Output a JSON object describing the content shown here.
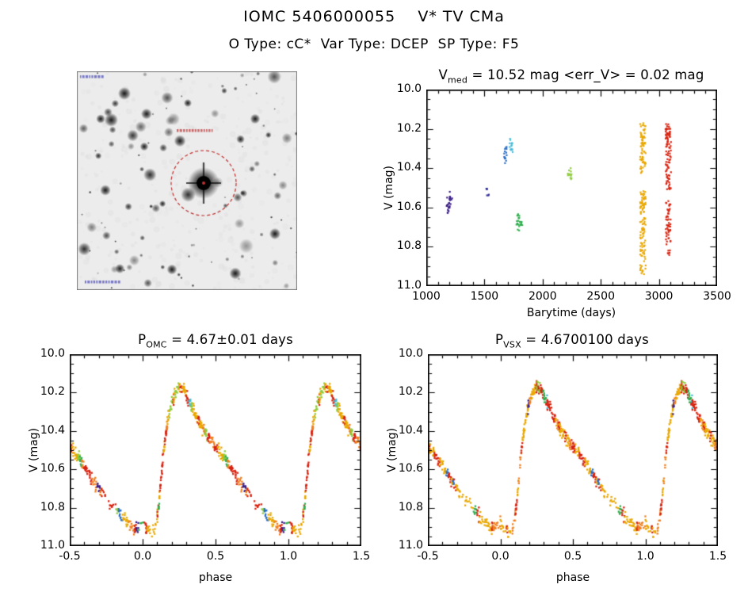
{
  "header": {
    "title": "IOMC 5406000055    V* TV CMa",
    "subtitle": "O Type: cC*  Var Type: DCEP  SP Type: F5"
  },
  "finder_chart": {
    "style": "inverted-grayscale star field with target circled",
    "target_circle_color": "#c03030"
  },
  "chart_data": [
    {
      "id": "timeseries",
      "type": "scatter",
      "title": "Vmed = 10.52 mag <err_V> = 0.02 mag",
      "title_parts": {
        "p1": "V",
        "sub": "med",
        "p2": " = 10.52 mag <err_V> = 0.02 mag"
      },
      "xlabel": "Barytime (days)",
      "ylabel": "V (mag)",
      "xlim": [
        1000,
        3500
      ],
      "ylim": [
        10.0,
        11.0
      ],
      "y_inverted": true,
      "xticks": [
        1000,
        1500,
        2000,
        2500,
        3000,
        3500
      ],
      "xtick_labels": [
        "1000",
        "1500",
        "2000",
        "2500",
        "3000",
        "3500"
      ],
      "xminor": 100,
      "yticks": [
        10.0,
        10.2,
        10.4,
        10.6,
        10.8,
        11.0
      ],
      "ytick_labels": [
        "10.0",
        "10.2",
        "10.4",
        "10.6",
        "10.8",
        "11.0"
      ],
      "yminor": 0.05,
      "segments": [
        {
          "x": 1192,
          "y0": 10.52,
          "y1": 10.63,
          "color": "#3a1d86",
          "n": 16,
          "w": 5
        },
        {
          "x": 1208,
          "y0": 10.54,
          "y1": 10.6,
          "color": "#3a1d86",
          "n": 8,
          "w": 4
        },
        {
          "x": 1528,
          "y0": 10.5,
          "y1": 10.54,
          "color": "#32309c",
          "n": 6,
          "w": 4
        },
        {
          "x": 1682,
          "y0": 10.29,
          "y1": 10.38,
          "color": "#2b6fc4",
          "n": 14,
          "w": 4
        },
        {
          "x": 1730,
          "y0": 10.25,
          "y1": 10.34,
          "color": "#46bcd8",
          "n": 14,
          "w": 4
        },
        {
          "x": 1786,
          "y0": 10.63,
          "y1": 10.74,
          "color": "#2fae4e",
          "n": 14,
          "w": 4
        },
        {
          "x": 1812,
          "y0": 10.66,
          "y1": 10.72,
          "color": "#2fae4e",
          "n": 9,
          "w": 4
        },
        {
          "x": 2232,
          "y0": 10.4,
          "y1": 10.46,
          "color": "#8ecb3c",
          "n": 12,
          "w": 5
        },
        {
          "x": 2862,
          "y0": 10.17,
          "y1": 10.43,
          "color": "#e9a800",
          "n": 70,
          "w": 7
        },
        {
          "x": 2862,
          "y0": 10.52,
          "y1": 10.94,
          "color": "#e9a800",
          "n": 110,
          "w": 7
        },
        {
          "x": 3080,
          "y0": 10.17,
          "y1": 10.52,
          "color": "#d62310",
          "n": 90,
          "w": 7
        },
        {
          "x": 3080,
          "y0": 10.56,
          "y1": 10.79,
          "color": "#d62310",
          "n": 50,
          "w": 6
        },
        {
          "x": 3086,
          "y0": 10.81,
          "y1": 10.84,
          "color": "#d62310",
          "n": 6,
          "w": 3
        }
      ]
    },
    {
      "id": "phase_omc",
      "type": "scatter",
      "title": "POMC = 4.67±0.01 days",
      "title_parts": {
        "p1": "P",
        "sub": "OMC",
        "p2": " = 4.67±0.01 days"
      },
      "xlabel": "phase",
      "ylabel": "V (mag)",
      "xlim": [
        -0.5,
        1.5
      ],
      "ylim": [
        10.0,
        11.0
      ],
      "y_inverted": true,
      "xticks": [
        -0.5,
        0.0,
        0.5,
        1.0,
        1.5
      ],
      "xtick_labels": [
        "-0.5",
        "0.0",
        "0.5",
        "1.0",
        "1.5"
      ],
      "xminor": 0.1,
      "yticks": [
        10.0,
        10.2,
        10.4,
        10.6,
        10.8,
        11.0
      ],
      "ytick_labels": [
        "10.0",
        "10.2",
        "10.4",
        "10.6",
        "10.8",
        "11.0"
      ],
      "yminor": 0.05,
      "curve": [
        [
          0.0,
          10.88
        ],
        [
          0.03,
          10.91
        ],
        [
          0.06,
          10.93
        ],
        [
          0.09,
          10.9
        ],
        [
          0.11,
          10.8
        ],
        [
          0.13,
          10.62
        ],
        [
          0.15,
          10.47
        ],
        [
          0.17,
          10.36
        ],
        [
          0.19,
          10.28
        ],
        [
          0.22,
          10.21
        ],
        [
          0.25,
          10.17
        ],
        [
          0.28,
          10.18
        ],
        [
          0.31,
          10.23
        ],
        [
          0.34,
          10.28
        ],
        [
          0.38,
          10.34
        ],
        [
          0.42,
          10.4
        ],
        [
          0.46,
          10.44
        ],
        [
          0.5,
          10.48
        ],
        [
          0.54,
          10.52
        ],
        [
          0.58,
          10.56
        ],
        [
          0.62,
          10.61
        ],
        [
          0.66,
          10.66
        ],
        [
          0.7,
          10.7
        ],
        [
          0.74,
          10.74
        ],
        [
          0.78,
          10.78
        ],
        [
          0.82,
          10.81
        ],
        [
          0.86,
          10.85
        ],
        [
          0.9,
          10.88
        ],
        [
          0.94,
          10.91
        ],
        [
          0.97,
          10.9
        ],
        [
          1.0,
          10.88
        ]
      ],
      "scatter_sigma_mag": 0.015,
      "n_scale": 470,
      "density_windows": [
        [
          0.0,
          0.06,
          0.7
        ],
        [
          0.06,
          0.1,
          0.5
        ],
        [
          0.1,
          0.26,
          1.6
        ],
        [
          0.26,
          0.4,
          1.5
        ],
        [
          0.4,
          0.58,
          1.2
        ],
        [
          0.58,
          0.72,
          1.0
        ],
        [
          0.72,
          0.82,
          0.3
        ],
        [
          0.82,
          0.97,
          0.85
        ],
        [
          0.97,
          1.0,
          0.4
        ]
      ],
      "palette": [
        [
          "#e9a800",
          0.36
        ],
        [
          "#f07f1f",
          0.13
        ],
        [
          "#d62310",
          0.3
        ],
        [
          "#2fae4e",
          0.08
        ],
        [
          "#46bcd8",
          0.05
        ],
        [
          "#8ecb3c",
          0.04
        ],
        [
          "#3a1d86",
          0.02
        ],
        [
          "#2b6fc4",
          0.02
        ]
      ]
    },
    {
      "id": "phase_vsx",
      "type": "scatter",
      "title": "PVSX = 4.6700100 days",
      "title_parts": {
        "p1": "P",
        "sub": "VSX",
        "p2": " = 4.6700100 days"
      },
      "xlabel": "phase",
      "ylabel": "V (mag)",
      "xlim": [
        -0.5,
        1.5
      ],
      "ylim": [
        10.0,
        11.0
      ],
      "y_inverted": true,
      "xticks": [
        -0.5,
        0.0,
        0.5,
        1.0,
        1.5
      ],
      "xtick_labels": [
        "-0.5",
        "0.0",
        "0.5",
        "1.0",
        "1.5"
      ],
      "xminor": 0.1,
      "yticks": [
        10.0,
        10.2,
        10.4,
        10.6,
        10.8,
        11.0
      ],
      "ytick_labels": [
        "10.0",
        "10.2",
        "10.4",
        "10.6",
        "10.8",
        "11.0"
      ],
      "yminor": 0.05,
      "curve": [
        [
          0.0,
          10.88
        ],
        [
          0.03,
          10.91
        ],
        [
          0.06,
          10.93
        ],
        [
          0.09,
          10.9
        ],
        [
          0.11,
          10.8
        ],
        [
          0.13,
          10.62
        ],
        [
          0.15,
          10.47
        ],
        [
          0.17,
          10.36
        ],
        [
          0.19,
          10.28
        ],
        [
          0.22,
          10.21
        ],
        [
          0.25,
          10.17
        ],
        [
          0.28,
          10.18
        ],
        [
          0.31,
          10.23
        ],
        [
          0.34,
          10.28
        ],
        [
          0.38,
          10.34
        ],
        [
          0.42,
          10.4
        ],
        [
          0.46,
          10.44
        ],
        [
          0.5,
          10.48
        ],
        [
          0.54,
          10.52
        ],
        [
          0.58,
          10.56
        ],
        [
          0.62,
          10.61
        ],
        [
          0.66,
          10.66
        ],
        [
          0.7,
          10.7
        ],
        [
          0.74,
          10.74
        ],
        [
          0.78,
          10.78
        ],
        [
          0.82,
          10.81
        ],
        [
          0.86,
          10.85
        ],
        [
          0.9,
          10.88
        ],
        [
          0.94,
          10.91
        ],
        [
          0.97,
          10.9
        ],
        [
          1.0,
          10.88
        ]
      ],
      "scatter_sigma_mag": 0.015,
      "n_scale": 470,
      "density_windows": [
        [
          0.0,
          0.06,
          0.7
        ],
        [
          0.06,
          0.1,
          0.5
        ],
        [
          0.1,
          0.26,
          1.6
        ],
        [
          0.26,
          0.4,
          1.5
        ],
        [
          0.4,
          0.58,
          1.2
        ],
        [
          0.58,
          0.72,
          1.0
        ],
        [
          0.72,
          0.82,
          0.3
        ],
        [
          0.82,
          0.97,
          0.85
        ],
        [
          0.97,
          1.0,
          0.4
        ]
      ],
      "palette": [
        [
          "#e9a800",
          0.36
        ],
        [
          "#f07f1f",
          0.13
        ],
        [
          "#d62310",
          0.3
        ],
        [
          "#2fae4e",
          0.08
        ],
        [
          "#46bcd8",
          0.05
        ],
        [
          "#8ecb3c",
          0.04
        ],
        [
          "#3a1d86",
          0.02
        ],
        [
          "#2b6fc4",
          0.02
        ]
      ]
    }
  ]
}
